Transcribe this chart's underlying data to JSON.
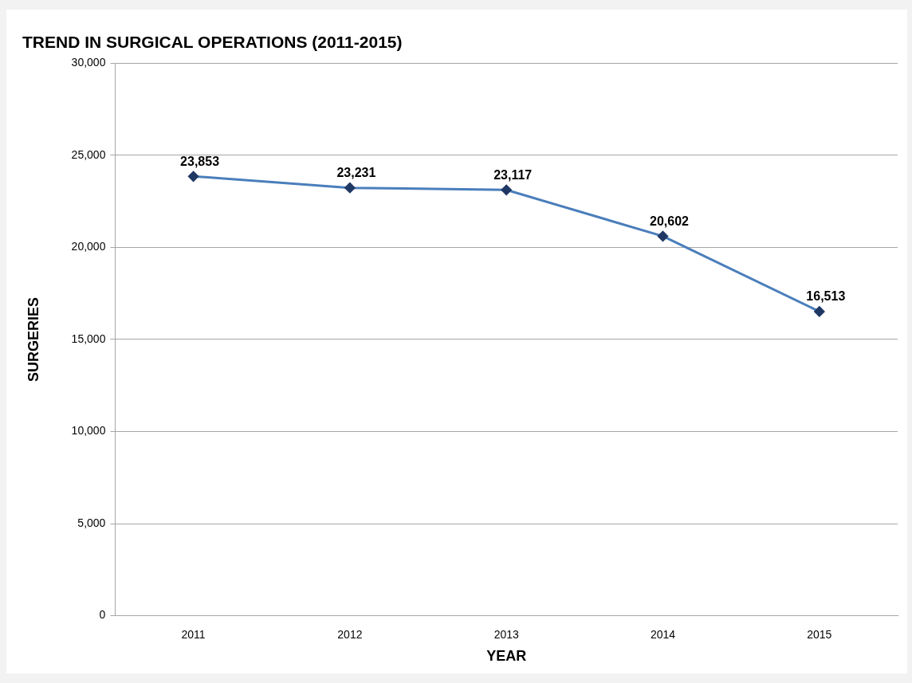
{
  "chart_data": {
    "type": "line",
    "title": "TREND IN SURGICAL OPERATIONS (2011-2015)",
    "xlabel": "YEAR",
    "ylabel": "SURGERIES",
    "categories": [
      "2011",
      "2012",
      "2013",
      "2014",
      "2015"
    ],
    "series": [
      {
        "color": "#4a7ebb",
        "values": [
          23853,
          23231,
          23117,
          20602,
          16513
        ],
        "value_labels": [
          "23,853",
          "23,231",
          "23,117",
          "20,602",
          "16,513"
        ]
      }
    ],
    "ylim": [
      0,
      30000
    ],
    "yticks": [
      {
        "value": 0,
        "label": "0"
      },
      {
        "value": 5000,
        "label": "5,000"
      },
      {
        "value": 10000,
        "label": "10,000"
      },
      {
        "value": 15000,
        "label": "15,000"
      },
      {
        "value": 20000,
        "label": "20,000"
      },
      {
        "value": 25000,
        "label": "25,000"
      },
      {
        "value": 30000,
        "label": "30,000"
      }
    ],
    "grid": "y",
    "legend": false,
    "marker": "diamond",
    "line_style": "solid"
  }
}
